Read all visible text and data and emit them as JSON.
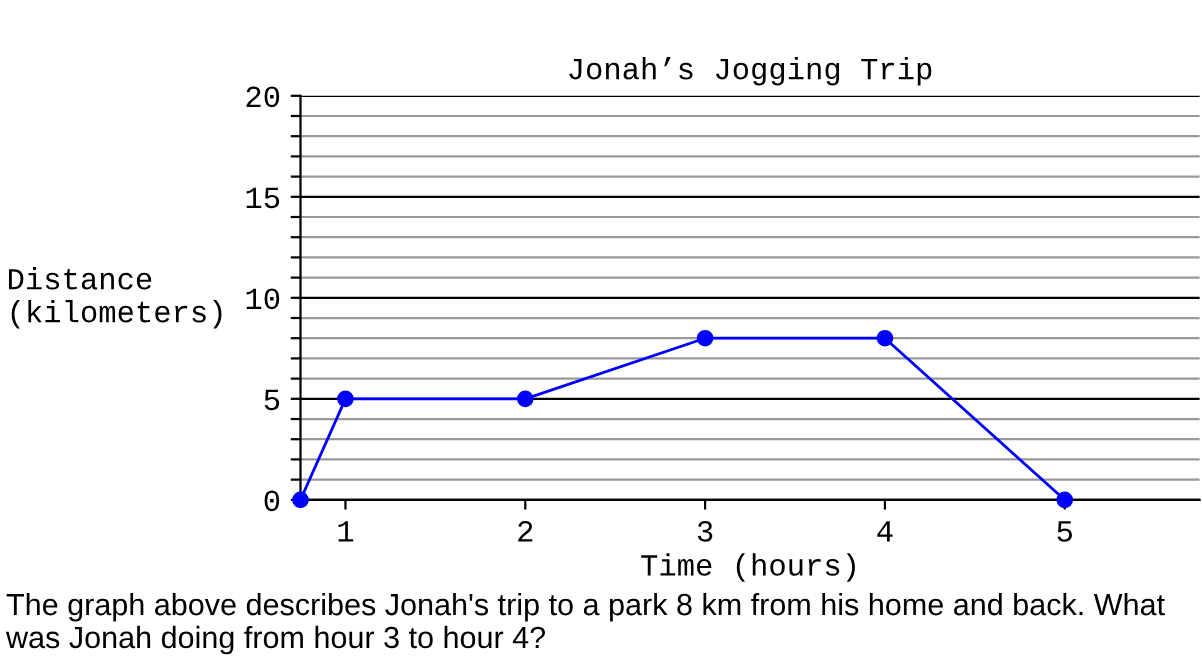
{
  "chart_data": {
    "type": "line",
    "title": "Jonah’s Jogging Trip",
    "xlabel": "Time (hours)",
    "ylabel": "Distance\n(kilometers)",
    "x": [
      0.75,
      1,
      2,
      3,
      4,
      5
    ],
    "series": [
      {
        "color": "#0000ff",
        "values": [
          0,
          5,
          5,
          8,
          8,
          0
        ]
      }
    ],
    "marker": "circle",
    "line_style": "solid",
    "grid": "y",
    "xlim": [
      0.75,
      5.75
    ],
    "xticks": [
      1,
      2,
      3,
      4,
      5
    ],
    "ylim": [
      0,
      20
    ],
    "yticks": [
      0,
      {
        "value": 1,
        "label": null
      },
      {
        "value": 2,
        "label": null
      },
      {
        "value": 3,
        "label": null
      },
      {
        "value": 4,
        "label": null
      },
      5,
      {
        "value": 6,
        "label": null
      },
      {
        "value": 7,
        "label": null
      },
      {
        "value": 8,
        "label": null
      },
      {
        "value": 9,
        "label": null
      },
      10,
      {
        "value": 11,
        "label": null
      },
      {
        "value": 12,
        "label": null
      },
      {
        "value": 13,
        "label": null
      },
      {
        "value": 14,
        "label": null
      },
      15,
      {
        "value": 16,
        "label": null
      },
      {
        "value": 17,
        "label": null
      },
      {
        "value": 18,
        "label": null
      },
      {
        "value": 19,
        "label": null
      },
      20
    ],
    "annotations": [
      "The graph above describes Jonah's trip to a park 8 km from his home and back. What was Jonah doing from hour 3 to hour 4?"
    ]
  }
}
